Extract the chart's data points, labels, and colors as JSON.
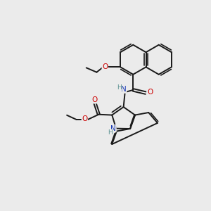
{
  "bg_color": "#ebebeb",
  "bond_color": "#1a1a1a",
  "bond_width": 1.4,
  "atom_colors": {
    "N": "#1a3ab5",
    "O": "#cc0000",
    "H": "#5a9090"
  }
}
